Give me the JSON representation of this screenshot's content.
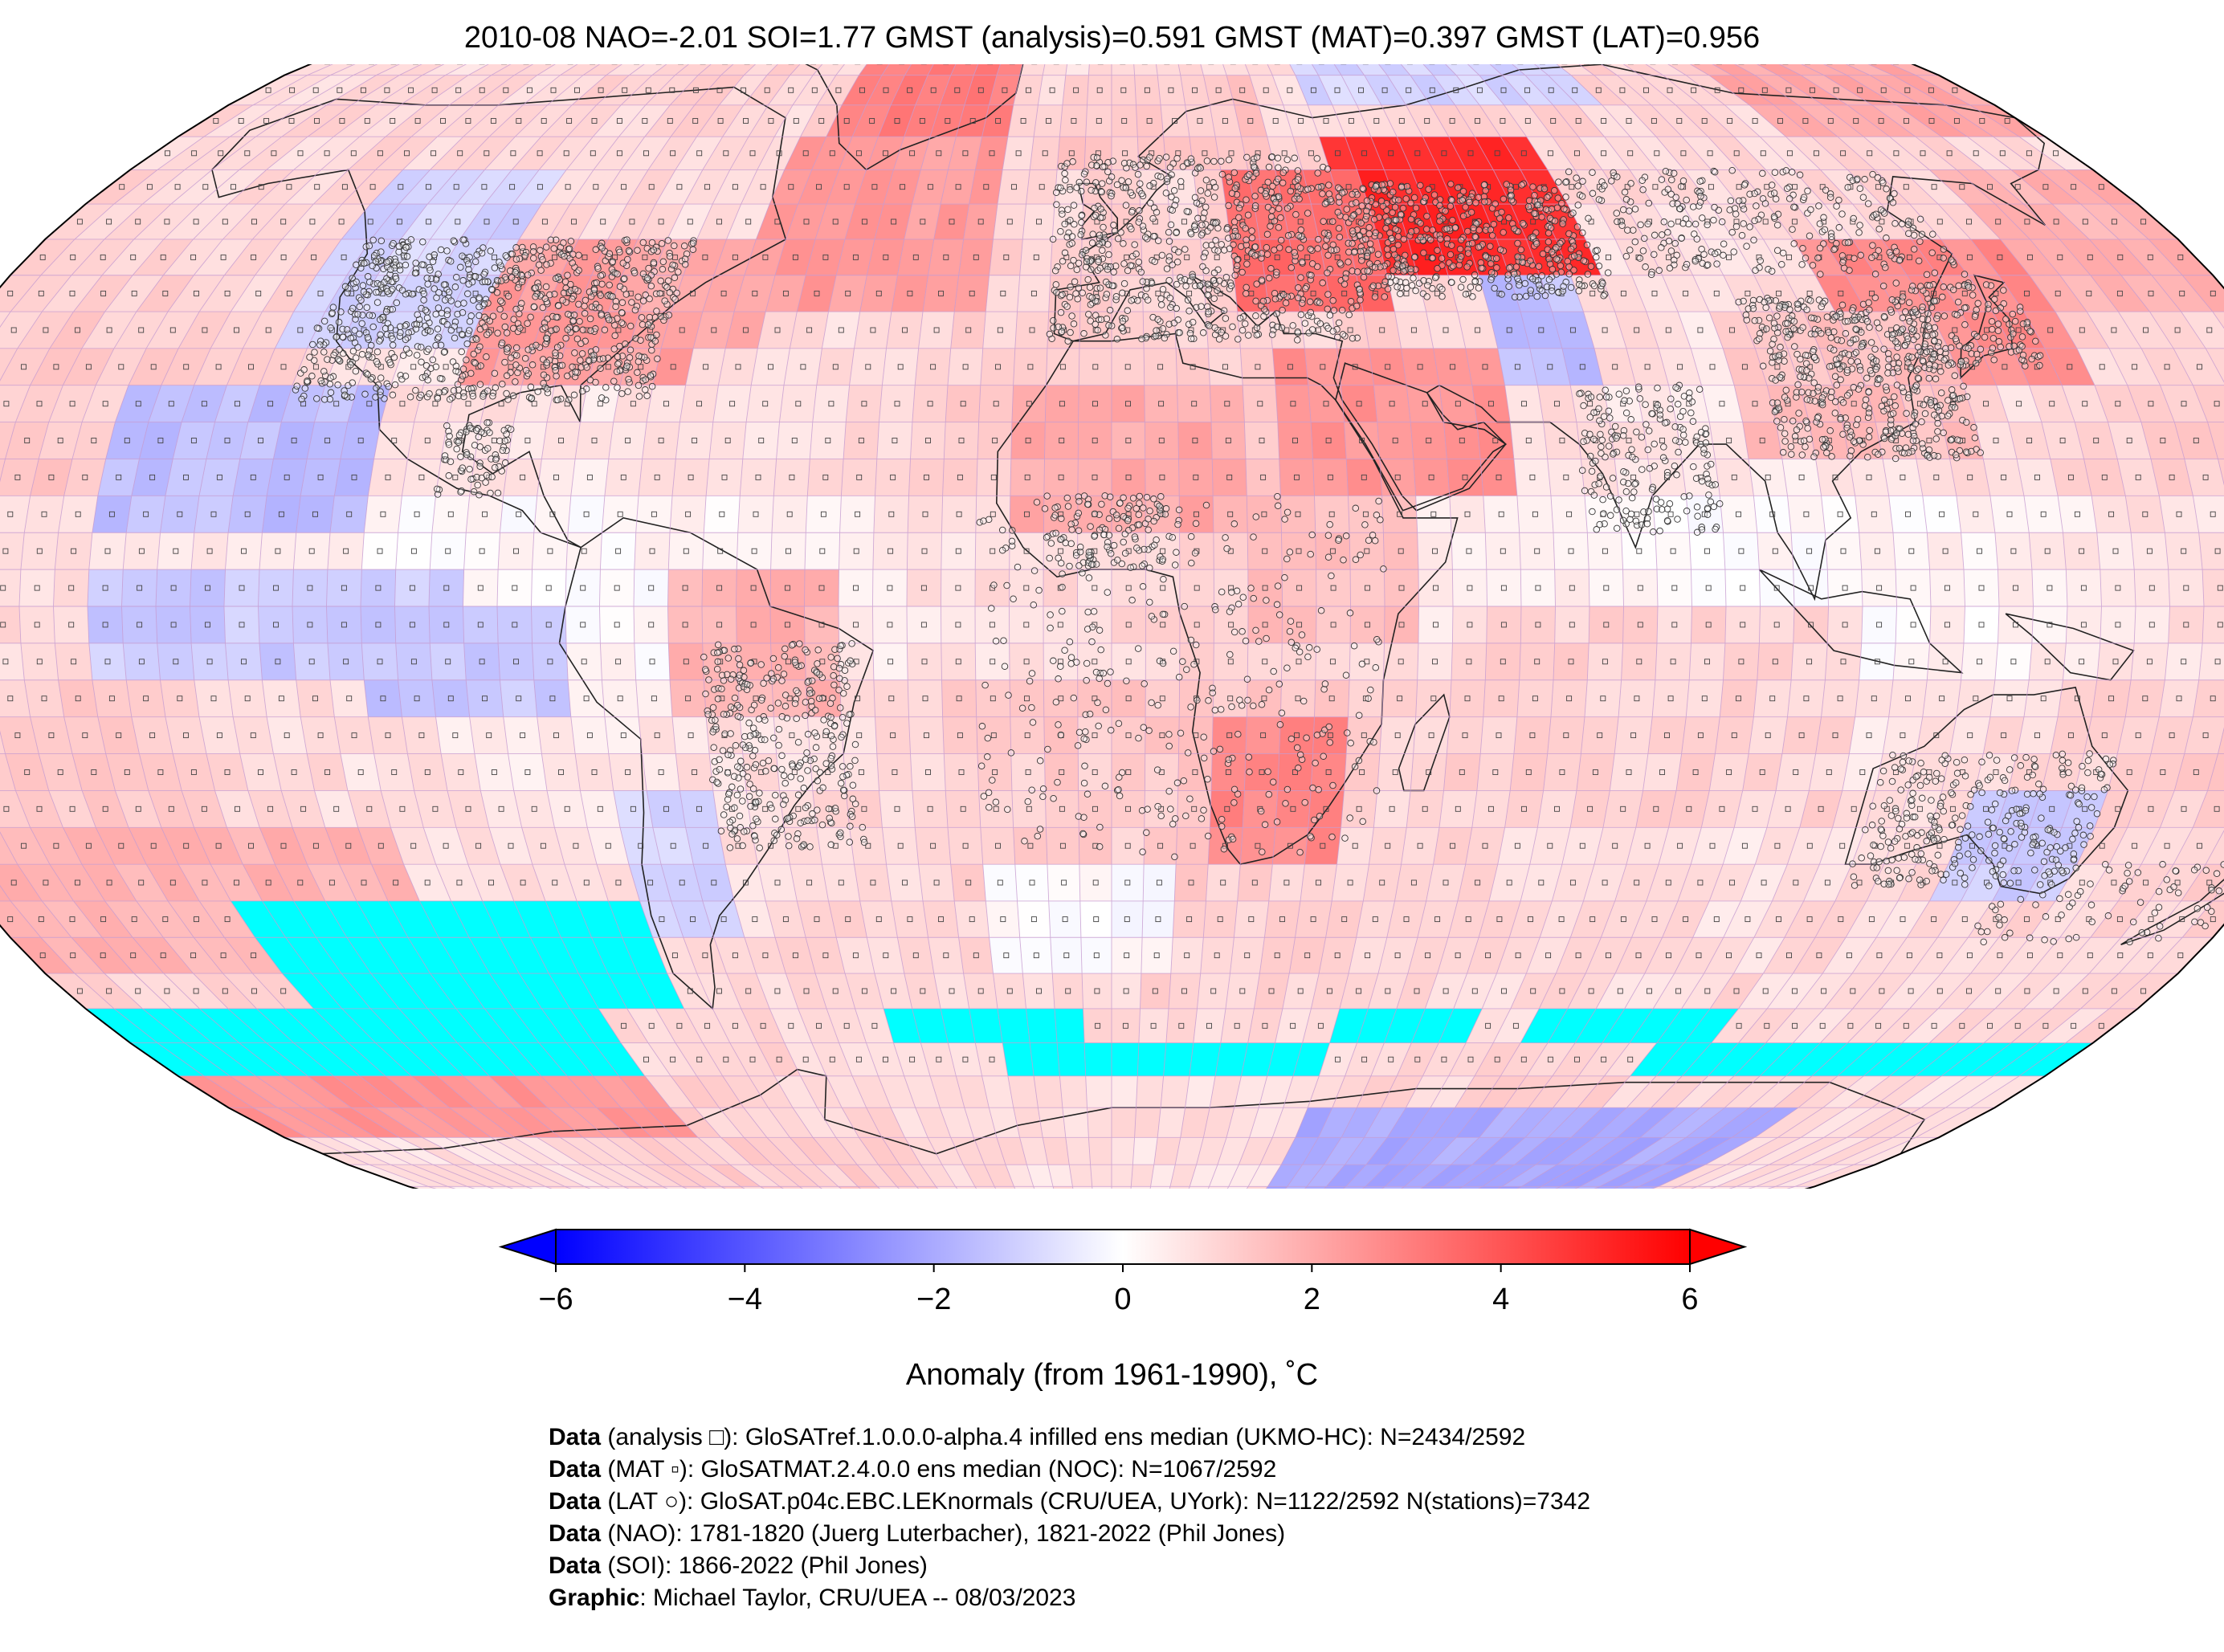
{
  "title": "2010-08 NAO=-2.01 SOI=1.77 GMST (analysis)=0.591 GMST (MAT)=0.397 GMST (LAT)=0.956",
  "map": {
    "projection": "Robinson",
    "grid": "5x5 degree",
    "no_data_color": "#00ffff",
    "markers": {
      "analysis": "small open square",
      "mat": "small dotted square",
      "lat": "open circle (station)"
    },
    "anomaly_regions": [
      {
        "name": "central-russia",
        "lon": [
          40,
          80
        ],
        "lat": [
          45,
          65
        ],
        "anomaly": 5.0
      },
      {
        "name": "east-europe",
        "lon": [
          20,
          45
        ],
        "lat": [
          40,
          60
        ],
        "anomaly": 3.5
      },
      {
        "name": "middle-east",
        "lon": [
          25,
          60
        ],
        "lat": [
          15,
          35
        ],
        "anomaly": 2.5
      },
      {
        "name": "greenland",
        "lon": [
          -55,
          -20
        ],
        "lat": [
          62,
          82
        ],
        "anomaly": 3.0
      },
      {
        "name": "north-atlantic",
        "lon": [
          -60,
          -20
        ],
        "lat": [
          40,
          62
        ],
        "anomaly": 2.3
      },
      {
        "name": "eastern-north-america",
        "lon": [
          -100,
          -65
        ],
        "lat": [
          30,
          50
        ],
        "anomaly": 2.3
      },
      {
        "name": "northwest-atlantic-coast",
        "lon": [
          -75,
          -55
        ],
        "lat": [
          35,
          48
        ],
        "anomaly": 2.0
      },
      {
        "name": "japan-korea",
        "lon": [
          115,
          150
        ],
        "lat": [
          30,
          50
        ],
        "anomaly": 2.7
      },
      {
        "name": "northeast-pacific-west",
        "lon": [
          150,
          180
        ],
        "lat": [
          40,
          60
        ],
        "anomaly": 1.8
      },
      {
        "name": "south-asia",
        "lon": [
          95,
          130
        ],
        "lat": [
          20,
          40
        ],
        "anomaly": 1.5
      },
      {
        "name": "west-africa-sahara",
        "lon": [
          -15,
          20
        ],
        "lat": [
          10,
          30
        ],
        "anomaly": 2.0
      },
      {
        "name": "east-africa",
        "lon": [
          20,
          45
        ],
        "lat": [
          -5,
          15
        ],
        "anomaly": 1.5
      },
      {
        "name": "southern-africa",
        "lon": [
          12,
          35
        ],
        "lat": [
          -35,
          -15
        ],
        "anomaly": 2.8
      },
      {
        "name": "northern-south-america",
        "lon": [
          -65,
          -40
        ],
        "lat": [
          -15,
          5
        ],
        "anomaly": 1.8
      },
      {
        "name": "south-pacific-west",
        "lon": [
          -180,
          -110
        ],
        "lat": [
          -50,
          -30
        ],
        "anomaly": 1.8
      },
      {
        "name": "southern-ocean-pacific",
        "lon": [
          -180,
          -90
        ],
        "lat": [
          -75,
          -60
        ],
        "anomaly": 2.5
      },
      {
        "name": "indian-ocean",
        "lon": [
          50,
          110
        ],
        "lat": [
          -30,
          0
        ],
        "anomaly": 1.0
      },
      {
        "name": "arctic-siberia",
        "lon": [
          130,
          180
        ],
        "lat": [
          65,
          85
        ],
        "anomaly": 2.0
      },
      {
        "name": "north-europe",
        "lon": [
          -10,
          30
        ],
        "lat": [
          60,
          72
        ],
        "anomaly": 1.3
      },
      {
        "name": "western-north-america",
        "lon": [
          -130,
          -100
        ],
        "lat": [
          35,
          60
        ],
        "anomaly": -1.0
      },
      {
        "name": "east-pacific-subtropics",
        "lon": [
          -150,
          -110
        ],
        "lat": [
          10,
          30
        ],
        "anomaly": -1.5
      },
      {
        "name": "central-pacific-equator",
        "lon": [
          -150,
          -95
        ],
        "lat": [
          -10,
          5
        ],
        "anomaly": -1.2
      },
      {
        "name": "tropical-east-pacific",
        "lon": [
          -110,
          -80
        ],
        "lat": [
          -15,
          0
        ],
        "anomaly": -1.3
      },
      {
        "name": "southern-south-america",
        "lon": [
          -75,
          -60
        ],
        "lat": [
          -45,
          -25
        ],
        "anomaly": -1.0
      },
      {
        "name": "west-central-asia",
        "lon": [
          60,
          75
        ],
        "lat": [
          30,
          45
        ],
        "anomaly": -1.5
      },
      {
        "name": "north-pacific-east",
        "lon": [
          40,
          100
        ],
        "lat": [
          70,
          80
        ],
        "anomaly": -1.0
      },
      {
        "name": "australia-southeast",
        "lon": [
          130,
          150
        ],
        "lat": [
          -40,
          -25
        ],
        "anomaly": -1.2
      },
      {
        "name": "antarctica-east",
        "lon": [
          40,
          140
        ],
        "lat": [
          -90,
          -70
        ],
        "anomaly": -2.0
      },
      {
        "name": "south-atlantic-west",
        "lon": [
          -20,
          10
        ],
        "lat": [
          -50,
          -35
        ],
        "anomaly": 0.0
      }
    ],
    "no_data_regions": [
      {
        "lon": [
          -180,
          -90
        ],
        "lat": [
          -65,
          -55
        ]
      },
      {
        "lon": [
          -140,
          -75
        ],
        "lat": [
          -55,
          -40
        ]
      },
      {
        "lon": [
          -40,
          -5
        ],
        "lat": [
          -60,
          -55
        ]
      },
      {
        "lon": [
          -20,
          40
        ],
        "lat": [
          -65,
          -60
        ]
      },
      {
        "lon": [
          40,
          65
        ],
        "lat": [
          -60,
          -55
        ]
      },
      {
        "lon": [
          75,
          110
        ],
        "lat": [
          -60,
          -55
        ]
      },
      {
        "lon": [
          100,
          180
        ],
        "lat": [
          -65,
          -60
        ]
      }
    ]
  },
  "colorbar": {
    "min": -6,
    "max": 6,
    "colors": [
      "#0000ff",
      "#ffffff",
      "#ff0000"
    ],
    "ticks": [
      "−6",
      "−4",
      "−2",
      "0",
      "2",
      "4",
      "6"
    ],
    "tick_values": [
      -6,
      -4,
      -2,
      0,
      2,
      4,
      6
    ],
    "label": "Anomaly (from 1961-1990), ˚C"
  },
  "credits": [
    {
      "bold": "Data",
      "text": " (analysis □): GloSATref.1.0.0.0-alpha.4 infilled ens median (UKMO-HC): N=2434/2592"
    },
    {
      "bold": "Data",
      "text": " (MAT ▫): GloSATMAT.2.4.0.0 ens median (NOC): N=1067/2592"
    },
    {
      "bold": "Data",
      "text": " (LAT ○): GloSAT.p04c.EBC.LEKnormals (CRU/UEA, UYork): N=1122/2592 N(stations)=7342"
    },
    {
      "bold": "Data",
      "text": " (NAO): 1781-1820 (Juerg Luterbacher), 1821-2022 (Phil Jones)"
    },
    {
      "bold": "Data",
      "text": " (SOI): 1866-2022 (Phil Jones)"
    },
    {
      "bold": "Graphic",
      "text": ": Michael Taylor, CRU/UEA -- 08/03/2023"
    }
  ]
}
